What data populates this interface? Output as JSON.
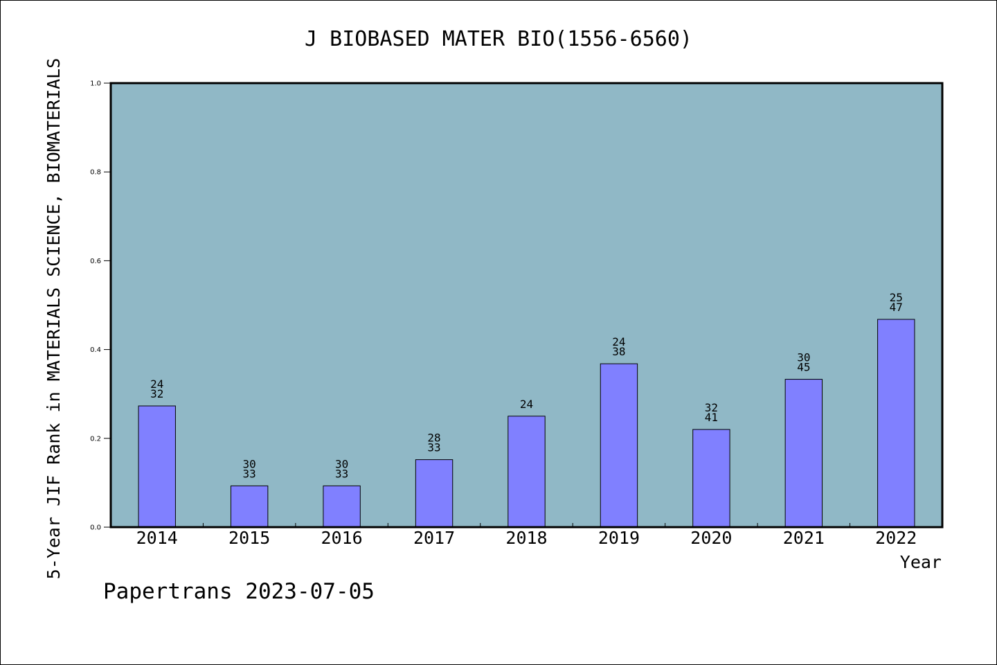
{
  "chart_data": {
    "type": "bar",
    "title": "J BIOBASED MATER BIO(1556-6560)",
    "xlabel": "Year",
    "ylabel": "5-Year JIF Rank in MATERIALS SCIENCE, BIOMATERIALS",
    "ylim": [
      0,
      1
    ],
    "yticks": [
      "0.0",
      "0.2",
      "0.4",
      "0.6",
      "0.8",
      "1.0"
    ],
    "categories": [
      "2014",
      "2015",
      "2016",
      "2017",
      "2018",
      "2019",
      "2020",
      "2021",
      "2022"
    ],
    "values": [
      0.273,
      0.093,
      0.093,
      0.152,
      0.25,
      0.368,
      0.22,
      0.333,
      0.468
    ],
    "labels": [
      [
        "24",
        "32"
      ],
      [
        "30",
        "33"
      ],
      [
        "30",
        "33"
      ],
      [
        "28",
        "33"
      ],
      [
        "24"
      ],
      [
        "24",
        "38"
      ],
      [
        "32",
        "41"
      ],
      [
        "30",
        "45"
      ],
      [
        "25",
        "47"
      ]
    ],
    "grid": false,
    "colors": {
      "plot_background": "#90b8c6",
      "bar_fill": "#8080ff",
      "bar_stroke": "#000000"
    }
  },
  "footer": {
    "text": "Papertrans 2023-07-05"
  }
}
